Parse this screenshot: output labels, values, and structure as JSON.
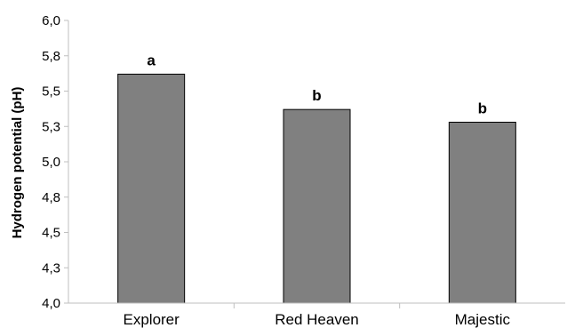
{
  "chart_data": {
    "type": "bar",
    "categories": [
      "Explorer",
      "Red Heaven",
      "Majestic"
    ],
    "values": [
      5.62,
      5.37,
      5.28
    ],
    "annotations": [
      "a",
      "b",
      "b"
    ],
    "ylabel": "Hydrogen potential (pH)",
    "xlabel": "",
    "title": "",
    "ylim": [
      4.0,
      6.0
    ],
    "yticks": [
      "4,0",
      "4,3",
      "4,5",
      "4,8",
      "5,0",
      "5,3",
      "5,5",
      "5,8",
      "6,0"
    ],
    "ytick_values": [
      4.0,
      4.25,
      4.5,
      4.75,
      5.0,
      5.25,
      5.5,
      5.75,
      6.0
    ],
    "grid": false,
    "bar_color": "#808080",
    "bar_edge_color": "#000000"
  }
}
